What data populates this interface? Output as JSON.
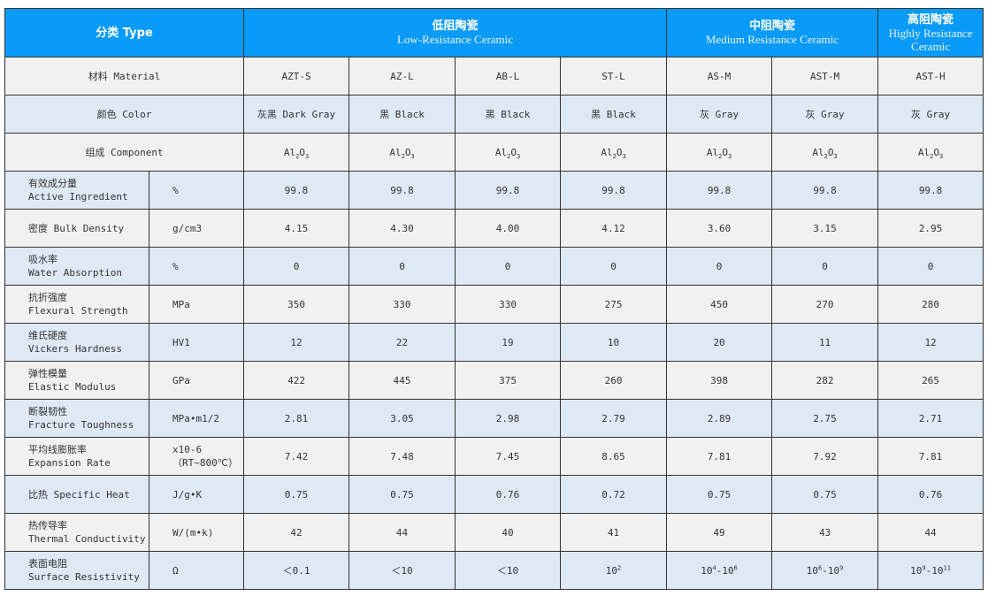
{
  "header": {
    "type_label": "分类 Type",
    "groups": [
      {
        "zh": "低阻陶瓷",
        "en": "Low-Resistance Ceramic",
        "span": 4
      },
      {
        "zh": "中阻陶瓷",
        "en": "Medium Resistance Ceramic",
        "span": 2
      },
      {
        "zh": "高阻陶瓷",
        "en": "Highly Resistance Ceramic",
        "span": 1
      }
    ]
  },
  "colors": {
    "header_bg": "#0a9af7",
    "row_light": "#f1f1f1",
    "row_blue": "#dde9f5"
  },
  "rows": [
    {
      "label": "材料 Material",
      "values": [
        "AZT-S",
        "AZ-L",
        "AB-L",
        "ST-L",
        "AS-M",
        "AST-M",
        "AST-H"
      ]
    },
    {
      "label": "颜色 Color",
      "values": [
        "灰黑 Dark Gray",
        "黑 Black",
        "黑 Black",
        "黑 Black",
        "灰 Gray",
        "灰 Gray",
        "灰 Gray"
      ]
    },
    {
      "label": "组成 Component",
      "values": [
        [
          {
            "t": "Al"
          },
          {
            "sub": "2"
          },
          {
            "t": "O"
          },
          {
            "sub": "3"
          }
        ],
        [
          {
            "t": "Al"
          },
          {
            "sub": "2"
          },
          {
            "t": "O"
          },
          {
            "sub": "3"
          }
        ],
        [
          {
            "t": "Al"
          },
          {
            "sub": "2"
          },
          {
            "t": "O"
          },
          {
            "sub": "3"
          }
        ],
        [
          {
            "t": "Al"
          },
          {
            "sub": "2"
          },
          {
            "t": "O"
          },
          {
            "sub": "3"
          }
        ],
        [
          {
            "t": "Al"
          },
          {
            "sub": "2"
          },
          {
            "t": "O"
          },
          {
            "sub": "3"
          }
        ],
        [
          {
            "t": "Al"
          },
          {
            "sub": "2"
          },
          {
            "t": "O"
          },
          {
            "sub": "3"
          }
        ],
        [
          {
            "t": "Al"
          },
          {
            "sub": "2"
          },
          {
            "t": "O"
          },
          {
            "sub": "3"
          }
        ]
      ]
    },
    {
      "label_zh": "有效成分量",
      "label_en": "Active Ingredient",
      "unit": "%",
      "values": [
        "99.8",
        "99.8",
        "99.8",
        "99.8",
        "99.8",
        "99.8",
        "99.8"
      ]
    },
    {
      "label": "密度 Bulk Density",
      "unit": "g/cm3",
      "values": [
        "4.15",
        "4.30",
        "4.00",
        "4.12",
        "3.60",
        "3.15",
        "2.95"
      ]
    },
    {
      "label_zh": "吸水率",
      "label_en": "Water Absorption",
      "unit": "%",
      "values": [
        "0",
        "0",
        "0",
        "0",
        "0",
        "0",
        "0"
      ]
    },
    {
      "label_zh": "抗折强度",
      "label_en": "Flexural Strength",
      "unit": "MPa",
      "values": [
        "350",
        "330",
        "330",
        "275",
        "450",
        "270",
        "280"
      ]
    },
    {
      "label_zh": "维氏硬度",
      "label_en": "Vickers Hardness",
      "unit": "HV1",
      "values": [
        "12",
        "22",
        "19",
        "10",
        "20",
        "11",
        "12"
      ]
    },
    {
      "label_zh": "弹性模量",
      "label_en": "Elastic Modulus",
      "unit": "GPa",
      "values": [
        "422",
        "445",
        "375",
        "260",
        "398",
        "282",
        "265"
      ]
    },
    {
      "label_zh": "断裂韧性",
      "label_en": "Fracture Toughness",
      "unit": "MPa•m1/2",
      "values": [
        "2.81",
        "3.05",
        "2.98",
        "2.79",
        "2.89",
        "2.75",
        "2.71"
      ]
    },
    {
      "label_zh": "平均线膨胀率",
      "label_en": "Expansion Rate",
      "unit": "x10-6",
      "unit2": "（RT~800℃）",
      "values": [
        "7.42",
        "7.48",
        "7.45",
        "8.65",
        "7.81",
        "7.92",
        "7.81"
      ]
    },
    {
      "label": "比热 Specific Heat",
      "unit": "J/g•K",
      "values": [
        "0.75",
        "0.75",
        "0.76",
        "0.72",
        "0.75",
        "0.75",
        "0.76"
      ]
    },
    {
      "label_zh": "热传导率",
      "label_en": "Thermal Conductivity",
      "unit": "W/(m•k)",
      "values": [
        "42",
        "44",
        "40",
        "41",
        "49",
        "43",
        "44"
      ]
    },
    {
      "label_zh": "表面电阻",
      "label_en": "Surface Resistivity",
      "unit": "Ω",
      "values": [
        "＜0.1",
        "＜10",
        "＜10",
        [
          {
            "t": "10"
          },
          {
            "sup": "2"
          }
        ],
        [
          {
            "t": "10"
          },
          {
            "sup": "4"
          },
          {
            "t": "-10"
          },
          {
            "sup": "6"
          }
        ],
        [
          {
            "t": "10"
          },
          {
            "sup": "6"
          },
          {
            "t": "-10"
          },
          {
            "sup": "9"
          }
        ],
        [
          {
            "t": "10"
          },
          {
            "sup": "9"
          },
          {
            "t": "-10"
          },
          {
            "sup": "11"
          }
        ]
      ]
    }
  ]
}
